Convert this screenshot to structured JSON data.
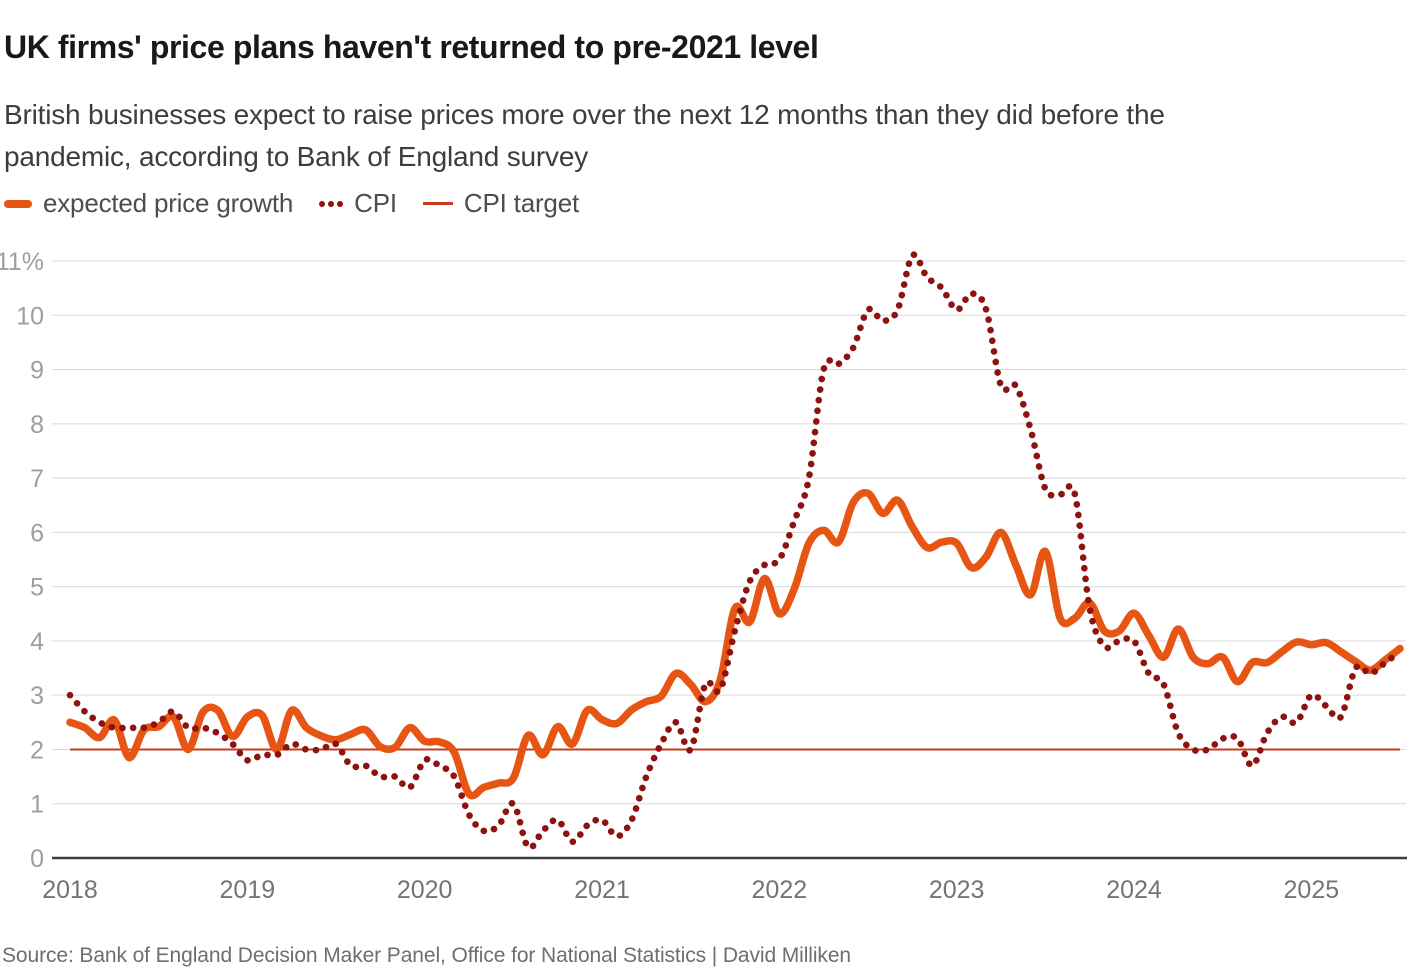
{
  "header": {
    "title": "UK firms' price plans haven't returned to pre-2021 level",
    "subtitle_lines": [
      "British businesses expect to raise prices more over the next 12 months than they did before the",
      "pandemic, according to Bank of England survey"
    ]
  },
  "legend": [
    {
      "label": "expected price growth",
      "swatch": "thick-line",
      "color": "#e65514"
    },
    {
      "label": "CPI",
      "swatch": "dots",
      "color": "#8e120e"
    },
    {
      "label": "CPI target",
      "swatch": "thin-line",
      "color": "#c43c1c"
    }
  ],
  "footer": {
    "source": "Source: Bank of England Decision Maker Panel, Office for National Statistics | David Milliken"
  },
  "chart_data": {
    "type": "line",
    "title": "UK firms' price plans haven't returned to pre-2021 level",
    "unit": "%",
    "frequency": "monthly",
    "x_start": "2018-01",
    "x_end": "2025-07",
    "x_labels": [
      "2018",
      "2019",
      "2020",
      "2021",
      "2022",
      "2023",
      "2024",
      "2025"
    ],
    "y_ticks": [
      "11%",
      "10",
      "9",
      "8",
      "7",
      "6",
      "5",
      "4",
      "3",
      "2",
      "1",
      "0"
    ],
    "ylim": [
      0,
      11.3
    ],
    "grid": "horizontal",
    "legend_position": "top",
    "series": [
      {
        "name": "expected price growth",
        "color": "#e65514",
        "style": "solid",
        "values": [
          2.5,
          2.4,
          2.22,
          2.54,
          1.85,
          2.36,
          2.42,
          2.6,
          2.0,
          2.69,
          2.72,
          2.24,
          2.6,
          2.63,
          2.0,
          2.72,
          2.4,
          2.25,
          2.18,
          2.28,
          2.36,
          2.05,
          2.04,
          2.4,
          2.15,
          2.14,
          1.95,
          1.18,
          1.3,
          1.38,
          1.47,
          2.26,
          1.9,
          2.42,
          2.1,
          2.72,
          2.55,
          2.48,
          2.73,
          2.88,
          2.98,
          3.4,
          3.2,
          2.88,
          3.28,
          4.6,
          4.35,
          5.15,
          4.5,
          4.95,
          5.8,
          6.04,
          5.82,
          6.55,
          6.72,
          6.35,
          6.59,
          6.1,
          5.72,
          5.82,
          5.8,
          5.35,
          5.55,
          6.0,
          5.4,
          4.85,
          5.65,
          4.42,
          4.42,
          4.7,
          4.18,
          4.18,
          4.51,
          4.1,
          3.7,
          4.22,
          3.7,
          3.58,
          3.7,
          3.25,
          3.6,
          3.6,
          3.8,
          3.98,
          3.93,
          3.97,
          3.8,
          3.62,
          3.46,
          3.65,
          3.86
        ]
      },
      {
        "name": "CPI",
        "color": "#8e120e",
        "style": "dotted",
        "values": [
          3.0,
          2.7,
          2.5,
          2.4,
          2.4,
          2.4,
          2.5,
          2.7,
          2.4,
          2.4,
          2.3,
          2.1,
          1.8,
          1.9,
          1.9,
          2.1,
          2.0,
          2.0,
          2.1,
          1.7,
          1.7,
          1.5,
          1.5,
          1.3,
          1.8,
          1.7,
          1.5,
          0.8,
          0.5,
          0.6,
          1.0,
          0.2,
          0.5,
          0.7,
          0.3,
          0.6,
          0.7,
          0.4,
          0.7,
          1.5,
          2.1,
          2.5,
          2.0,
          3.2,
          3.1,
          4.2,
          5.1,
          5.4,
          5.5,
          6.2,
          7.0,
          9.0,
          9.1,
          9.4,
          10.1,
          9.9,
          10.1,
          11.1,
          10.7,
          10.5,
          10.1,
          10.4,
          10.1,
          8.7,
          8.7,
          7.9,
          6.8,
          6.7,
          6.7,
          4.6,
          3.9,
          4.0,
          4.0,
          3.4,
          3.2,
          2.3,
          2.0,
          2.0,
          2.2,
          2.2,
          1.7,
          2.3,
          2.6,
          2.5,
          3.0,
          2.8,
          2.6,
          3.5,
          3.4,
          3.6,
          3.8
        ]
      },
      {
        "name": "CPI target",
        "color": "#c43c1c",
        "style": "thin-solid",
        "constant": 2.0
      }
    ],
    "axis_colors": {
      "gridline": "#d9d9d9",
      "axis_line": "#3d3d3d",
      "y_label": "#9e9e9e",
      "x_label": "#747474"
    }
  }
}
